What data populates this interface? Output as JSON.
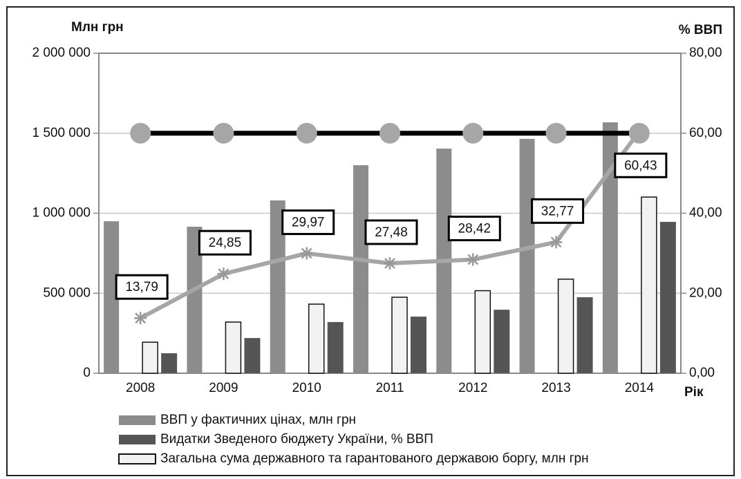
{
  "chart_data": {
    "type": "bar_line",
    "y_label": "Млн грн",
    "y2_label": "% ВВП",
    "x_label": "Рік",
    "categories": [
      "2008",
      "2009",
      "2010",
      "2011",
      "2012",
      "2013",
      "2014"
    ],
    "series": [
      {
        "name": "ВВП у фактичних цінах, млн грн",
        "type": "bar",
        "color": "#8c8c8c",
        "values": [
          950000,
          916000,
          1080000,
          1300000,
          1404000,
          1465000,
          1568000
        ]
      },
      {
        "name": "Загальна сума державного та гарантованого державою боргу, млн грн",
        "type": "bar",
        "color": "#f2f2f2",
        "values": [
          194000,
          320000,
          432000,
          475000,
          516000,
          588000,
          1101000
        ]
      },
      {
        "name": "Видатки Зведеного бюджету України, % ВВП",
        "type": "bar",
        "color": "#555555",
        "values": [
          125000,
          220000,
          320000,
          354000,
          397000,
          475000,
          946000
        ]
      },
      {
        "type": "line",
        "axis": "y2",
        "color": "#a6a6a6",
        "values": [
          13.79,
          24.85,
          29.97,
          27.48,
          28.42,
          32.77,
          60.43
        ],
        "value_labels": [
          "13,79",
          "24,85",
          "29,97",
          "27,48",
          "28,42",
          "32,77",
          "60,43"
        ]
      },
      {
        "type": "threshold",
        "axis": "y2",
        "color": "#000000",
        "marker_color": "#a6a6a6",
        "values": [
          60,
          60,
          60,
          60,
          60,
          60,
          60
        ]
      }
    ],
    "legend_order": [
      0,
      2,
      1
    ],
    "ylim": [
      0,
      2000000
    ],
    "yticks": [
      0,
      {
        "value": 500000,
        "label": "500 000"
      },
      {
        "value": 1000000,
        "label": "1 000 000"
      },
      {
        "value": 1500000,
        "label": "1 500 000"
      },
      {
        "value": 2000000,
        "label": "2 000 000"
      }
    ],
    "y2lim": [
      0,
      80
    ],
    "y2ticks": [
      {
        "value": 0,
        "label": "0,00"
      },
      {
        "value": 20,
        "label": "20,00"
      },
      {
        "value": 40,
        "label": "40,00"
      },
      {
        "value": 60,
        "label": "60,00"
      },
      {
        "value": 80,
        "label": "80,00"
      }
    ],
    "grid": true
  }
}
